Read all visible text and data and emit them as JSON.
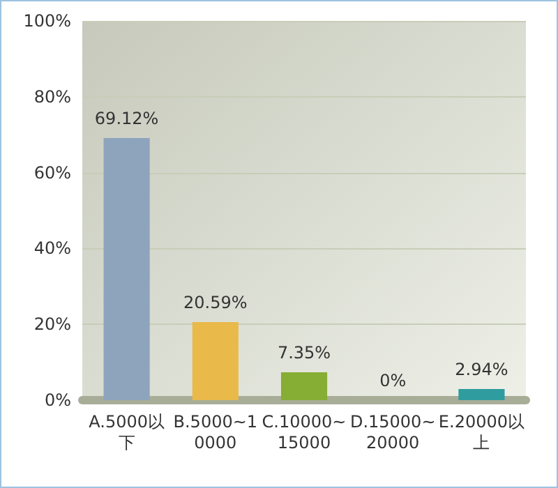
{
  "chart_data": {
    "type": "bar",
    "categories": [
      "A.5000以下",
      "B.5000~10000",
      "C.10000~15000",
      "D.15000~20000",
      "E.20000以上"
    ],
    "values": [
      69.12,
      20.59,
      7.35,
      0,
      2.94
    ],
    "colors": [
      "#8ea4bc",
      "#e9b94a",
      "#86ad34",
      "#f2a183",
      "#2f9c9f"
    ],
    "value_labels": [
      "69.12%",
      "20.59%",
      "7.35%",
      "0%",
      "2.94%"
    ],
    "ylim": [
      0,
      100
    ],
    "yticks": [
      {
        "value": 0,
        "label": "0%"
      },
      {
        "value": 20,
        "label": "20%"
      },
      {
        "value": 40,
        "label": "40%"
      },
      {
        "value": 60,
        "label": "60%"
      },
      {
        "value": 80,
        "label": "80%"
      },
      {
        "value": 100,
        "label": "100%"
      }
    ],
    "grid": "y"
  }
}
